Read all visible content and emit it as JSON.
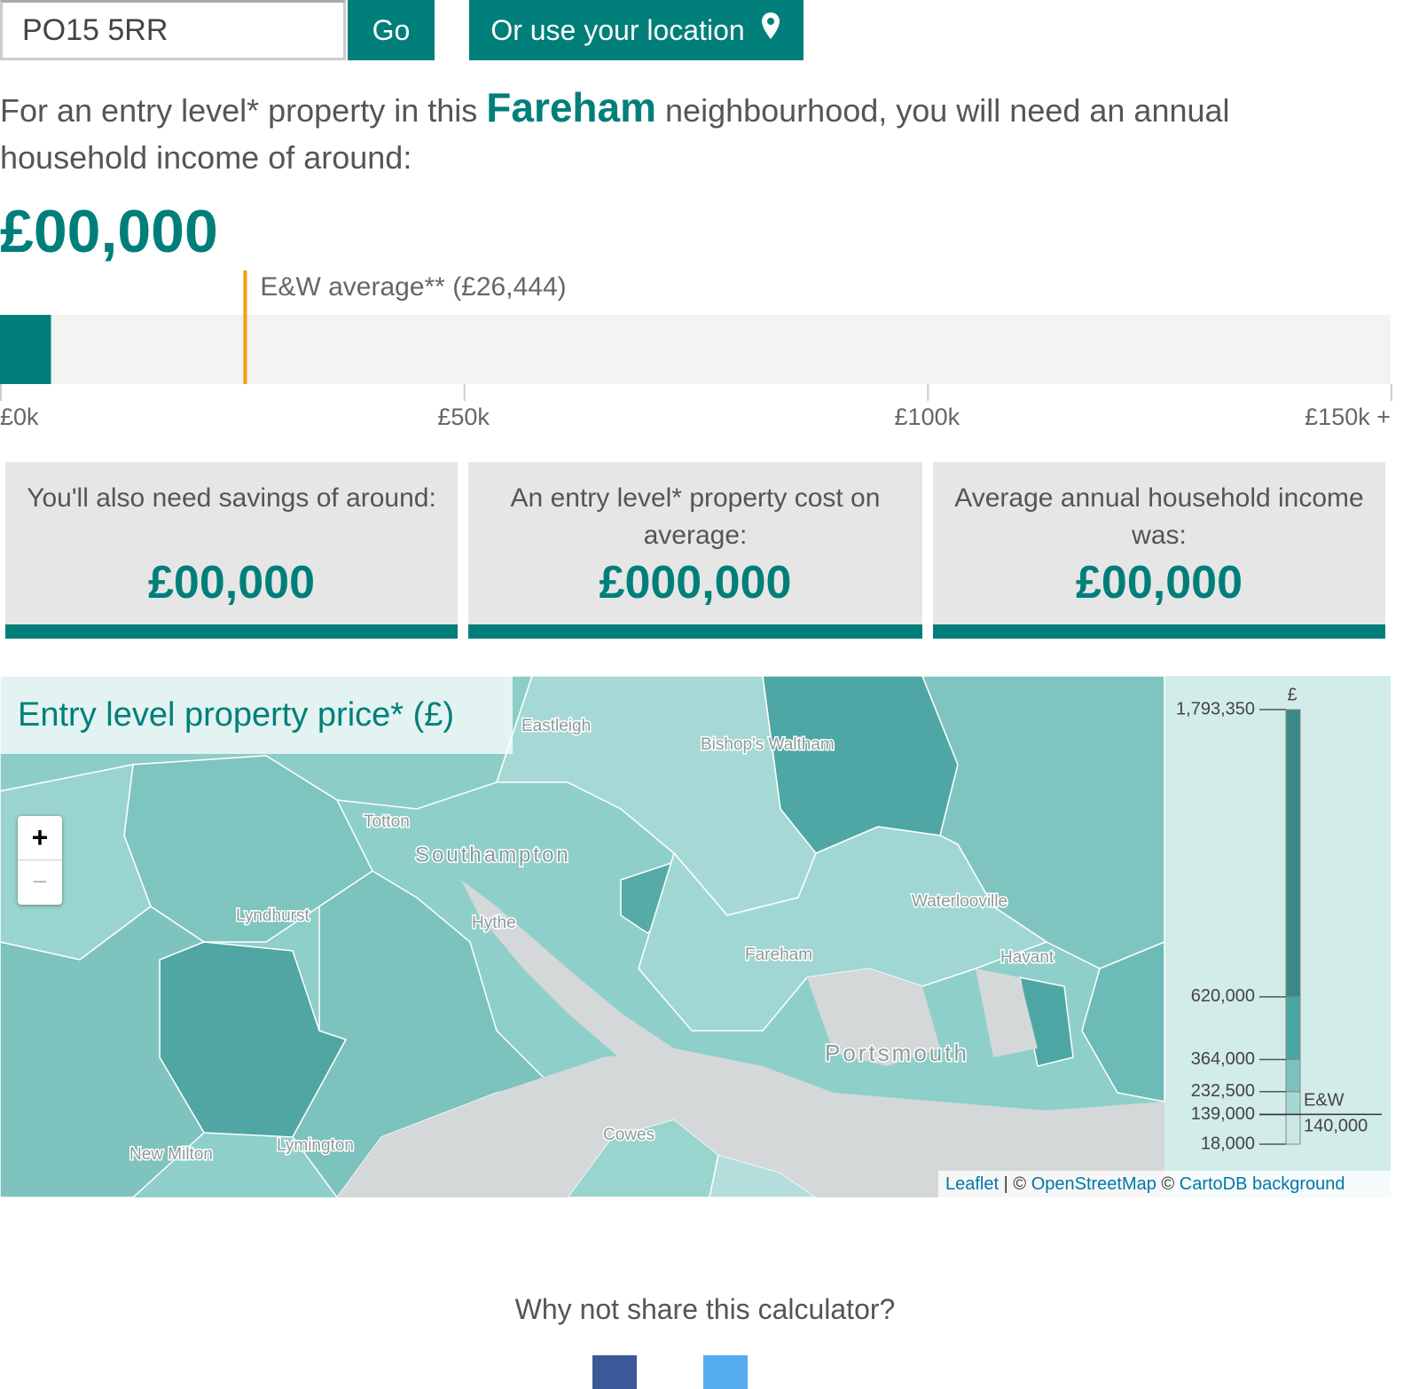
{
  "search": {
    "postcode": "PO15 5RR",
    "go": "Go",
    "location_button": "Or use your location"
  },
  "intro": {
    "before": "For an entry level* property in this",
    "area": "Fareham",
    "after": "neighbourhood, you will need an annual household income of around:"
  },
  "income": "£00,000",
  "income_bar": {
    "value": 5500,
    "color": "#007f7a",
    "xlim": [
      0,
      150000
    ],
    "xticks": [
      {
        "value": 0,
        "label": "£0k"
      },
      {
        "value": 50000,
        "label": "£50k"
      },
      {
        "value": 100000,
        "label": "£100k"
      },
      {
        "value": 150000,
        "label": "£150k +"
      }
    ],
    "average": 26444,
    "average_label": "E&W average** (£26,444)",
    "average_color": "#f2a20c"
  },
  "cards": [
    {
      "label": "You'll also need savings of around:",
      "value": "£00,000"
    },
    {
      "label": "An entry level* property cost on average:",
      "value": "£000,000"
    },
    {
      "label": "Average annual household income was:",
      "value": "£00,000"
    }
  ],
  "map": {
    "title": "Entry level property price* (£)",
    "zoom_in": "+",
    "zoom_out": "−",
    "places": [
      "Eastleigh",
      "Bishop's Waltham",
      "Totton",
      "Southampton",
      "Lyndhurst",
      "Hythe",
      "Fareham",
      "Waterlooville",
      "Havant",
      "Portsmouth",
      "Lymington",
      "New Milton",
      "Cowes"
    ],
    "legend": {
      "unit": "£",
      "ylim": [
        18000,
        1793350
      ],
      "yticks": [
        {
          "value": 18000,
          "label": "18,000"
        },
        {
          "value": 139000,
          "label": "139,000"
        },
        {
          "value": 232500,
          "label": "232,500"
        },
        {
          "value": 364000,
          "label": "364,000"
        },
        {
          "value": 620000,
          "label": "620,000"
        },
        {
          "value": 1793350,
          "label": "1,793,350"
        }
      ],
      "band_colors": [
        "#c9e7e4",
        "#a4d8d4",
        "#79c2bd",
        "#4aa6a3",
        "#3a8986"
      ],
      "average": {
        "label": "E&W",
        "value": 140000,
        "value_label": "140,000"
      }
    },
    "attribution": {
      "leaflet": "Leaflet",
      "sep1": "| ©",
      "osm": "OpenStreetMap",
      "sep2": "©",
      "carto": "CartoDB background"
    }
  },
  "share": {
    "title": "Why not share this calculator?"
  }
}
